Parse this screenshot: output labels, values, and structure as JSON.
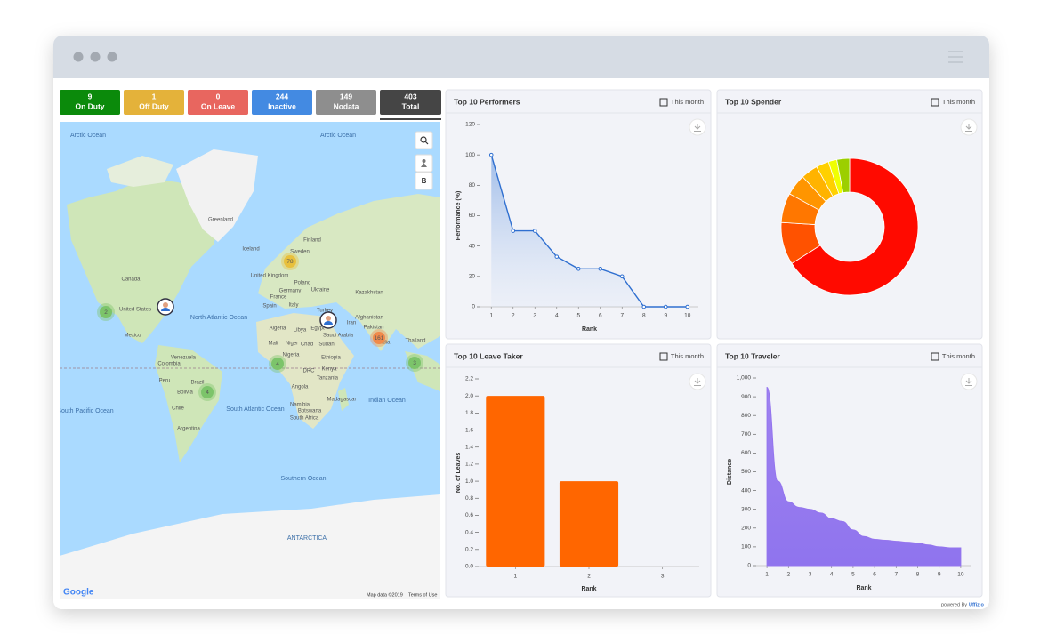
{
  "status": [
    {
      "count": 9,
      "label": "On Duty",
      "color": "#0b8a0b"
    },
    {
      "count": 1,
      "label": "Off Duty",
      "color": "#e4b23a"
    },
    {
      "count": 0,
      "label": "On Leave",
      "color": "#e8665f"
    },
    {
      "count": 244,
      "label": "Inactive",
      "color": "#438ae2"
    },
    {
      "count": 149,
      "label": "Nodata",
      "color": "#8e8e8e"
    },
    {
      "count": 403,
      "label": "Total",
      "color": "#454545"
    }
  ],
  "map": {
    "labels": [
      "Arctic Ocean",
      "Arctic Ocean",
      "Greenland",
      "Iceland",
      "Finland",
      "Sweden",
      "United Kingdom",
      "Poland",
      "Germany",
      "Ukraine",
      "France",
      "Kazakhstan",
      "Spain",
      "Italy",
      "Turkey",
      "Canada",
      "United States",
      "Mexico",
      "North Atlantic Ocean",
      "Afghanistan",
      "Iran",
      "Egypt",
      "Libya",
      "Algeria",
      "Saudi Arabia",
      "Pakistan",
      "India",
      "Thailand",
      "Mali",
      "Niger",
      "Chad",
      "Sudan",
      "Nigeria",
      "Ethiopia",
      "Venezuela",
      "Colombia",
      "Kenya",
      "DRC",
      "Peru",
      "Brazil",
      "Tanzania",
      "Bolivia",
      "Angola",
      "South Pacific Ocean",
      "South Atlantic Ocean",
      "Indian Ocean",
      "Madagascar",
      "Namibia",
      "Botswana",
      "Chile",
      "South Africa",
      "Argentina",
      "Southern Ocean",
      "ANTARCTICA"
    ],
    "clusters": [
      {
        "count": 2,
        "color": "#7cc46a"
      },
      {
        "count": 78,
        "color": "#e8c03c"
      },
      {
        "count": 4,
        "color": "#7cc46a"
      },
      {
        "count": 161,
        "color": "#f08a4b"
      },
      {
        "count": 3,
        "color": "#7cc46a"
      },
      {
        "count": 4,
        "color": "#7cc46a"
      }
    ],
    "button": "B",
    "brand": "Google",
    "attribution": "Map data ©2019",
    "terms": "Terms of Use"
  },
  "footer": {
    "prefix": "powered By",
    "brand": "Uffizio"
  },
  "chart_data": [
    {
      "type": "line",
      "title": "Top 10 Performers",
      "period": "This month",
      "x": [
        1,
        2,
        3,
        4,
        5,
        6,
        7,
        8,
        9,
        10
      ],
      "values": [
        100,
        50,
        50,
        33,
        25,
        25,
        20,
        0,
        0,
        0
      ],
      "color": "#2f6fd0",
      "xlim": [
        0.5,
        10.5
      ],
      "xticks": [
        1,
        2,
        3,
        4,
        5,
        6,
        7,
        8,
        9,
        10
      ],
      "ylim": [
        0,
        120
      ],
      "yticks": [
        0,
        20,
        40,
        60,
        80,
        100,
        120
      ],
      "xlabel": "Rank",
      "ylabel": "Performance (%)",
      "grid": false
    },
    {
      "type": "pie",
      "title": "Top 10 Spender",
      "period": "This month",
      "values": [
        66,
        10,
        7,
        5,
        4,
        3,
        2,
        3
      ],
      "colors": [
        "#ff0a00",
        "#ff5200",
        "#ff7700",
        "#ff9500",
        "#ffb300",
        "#ffd000",
        "#f0ff00",
        "#9ccf00"
      ],
      "donut": true
    },
    {
      "type": "bar",
      "title": "Top 10 Leave Taker",
      "period": "This month",
      "categories": [
        "1",
        "2",
        "3"
      ],
      "values": [
        2,
        1,
        0
      ],
      "color": "#ff6600",
      "ylim": [
        0,
        2.2
      ],
      "yticks": [
        {
          "value": 0,
          "label": "0.0"
        },
        0.2,
        0.4,
        0.6,
        0.8,
        {
          "value": 1,
          "label": "1.0"
        },
        1.2,
        1.4,
        1.6,
        1.8,
        {
          "value": 2,
          "label": "2.0"
        },
        2.2
      ],
      "xlabel": "Rank",
      "ylabel": "No. of Leaves",
      "grid": false
    },
    {
      "type": "area",
      "title": "Top 10 Traveler",
      "period": "This month",
      "x": [
        1,
        1.5,
        2,
        2.5,
        3,
        3.5,
        4,
        4.5,
        5,
        5.5,
        6,
        6.5,
        7,
        7.5,
        8,
        8.5,
        9,
        9.5,
        10
      ],
      "values": [
        950,
        450,
        340,
        310,
        300,
        280,
        250,
        235,
        190,
        155,
        140,
        135,
        130,
        125,
        120,
        110,
        100,
        95,
        95
      ],
      "color": "#9474ee",
      "xlim": [
        0.5,
        10.5
      ],
      "xticks": [
        1,
        2,
        3,
        4,
        5,
        6,
        7,
        8,
        9,
        10
      ],
      "ylim": [
        0,
        1000
      ],
      "yticks": [
        0,
        100,
        200,
        300,
        400,
        500,
        600,
        700,
        800,
        900,
        {
          "value": 1000,
          "label": "1,000"
        }
      ],
      "xlabel": "Rank",
      "ylabel": "Distance",
      "grid": false
    }
  ]
}
